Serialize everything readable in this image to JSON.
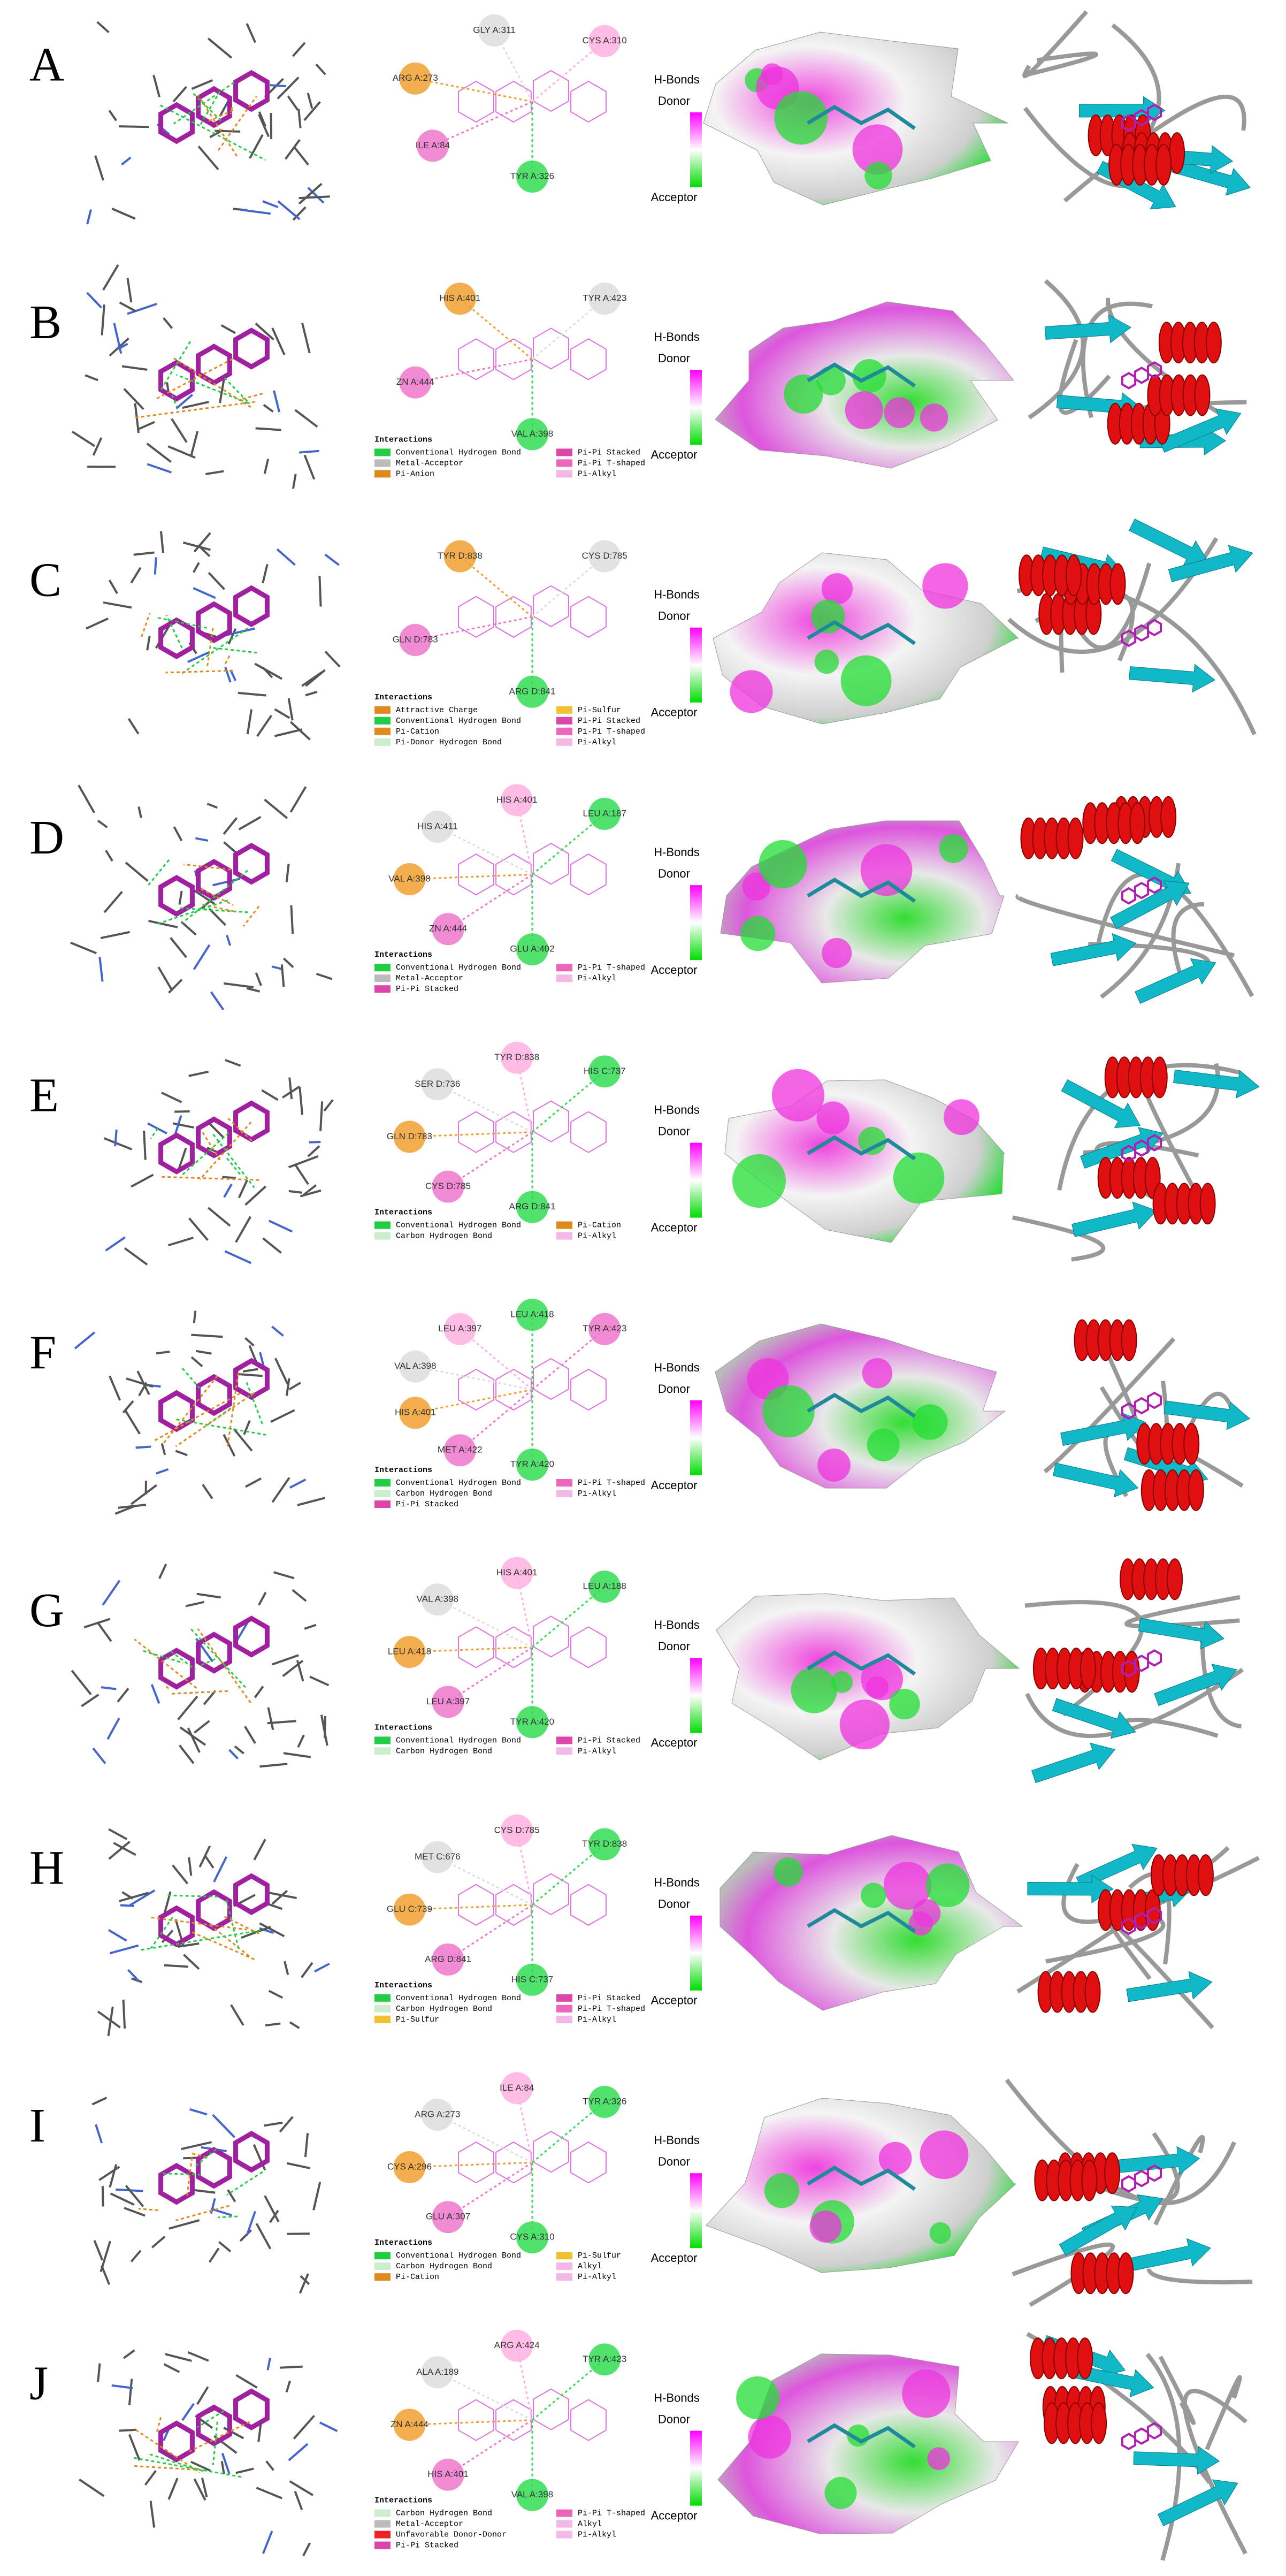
{
  "panels": [
    {
      "label": "A",
      "residues": [
        "TYR A:326",
        "ILE A:84",
        "ARG A:273",
        "GLY A:311",
        "CYS A:310"
      ],
      "legend_title": null,
      "interactions": [],
      "hbonds": {
        "title": "H-Bonds",
        "donor": "Donor",
        "acceptor": "Acceptor"
      }
    },
    {
      "label": "B",
      "residues": [
        "VAL A:398",
        "ZN A:444",
        "HIS A:401",
        "TYR A:423"
      ],
      "legend_title": "Interactions",
      "interactions": [
        {
          "name": "Conventional Hydrogen Bond",
          "color": "#22cc44"
        },
        {
          "name": "Metal-Acceptor",
          "color": "#bbbbbb"
        },
        {
          "name": "Pi-Anion",
          "color": "#e08a1e"
        },
        {
          "name": "Pi-Pi Stacked",
          "color": "#dd44aa"
        },
        {
          "name": "Pi-Pi T-shaped",
          "color": "#ee66bb"
        },
        {
          "name": "Pi-Alkyl",
          "color": "#f4b8e4"
        }
      ],
      "hbonds": {
        "title": "H-Bonds",
        "donor": "Donor",
        "acceptor": "Acceptor"
      }
    },
    {
      "label": "C",
      "residues": [
        "ARG D:841",
        "GLN D:783",
        "TYR D:838",
        "CYS D:785"
      ],
      "legend_title": "Interactions",
      "interactions": [
        {
          "name": "Attractive Charge",
          "color": "#e08a1e"
        },
        {
          "name": "Conventional Hydrogen Bond",
          "color": "#22cc44"
        },
        {
          "name": "Pi-Cation",
          "color": "#e08a1e"
        },
        {
          "name": "Pi-Donor Hydrogen Bond",
          "color": "#cceecc"
        },
        {
          "name": "Pi-Sulfur",
          "color": "#f0c030"
        },
        {
          "name": "Pi-Pi Stacked",
          "color": "#dd44aa"
        },
        {
          "name": "Pi-Pi T-shaped",
          "color": "#ee66bb"
        },
        {
          "name": "Pi-Alkyl",
          "color": "#f4b8e4"
        }
      ],
      "hbonds": {
        "title": "H-Bonds",
        "donor": "Donor",
        "acceptor": "Acceptor"
      }
    },
    {
      "label": "D",
      "residues": [
        "GLU A:402",
        "ZN A:444",
        "VAL A:398",
        "HIS A:411",
        "HIS A:401",
        "LEU A:187"
      ],
      "legend_title": "Interactions",
      "interactions": [
        {
          "name": "Conventional Hydrogen Bond",
          "color": "#22cc44"
        },
        {
          "name": "Metal-Acceptor",
          "color": "#bbbbbb"
        },
        {
          "name": "Pi-Pi Stacked",
          "color": "#dd44aa"
        },
        {
          "name": "Pi-Pi T-shaped",
          "color": "#ee66bb"
        },
        {
          "name": "Pi-Alkyl",
          "color": "#f4b8e4"
        }
      ],
      "hbonds": {
        "title": "H-Bonds",
        "donor": "Donor",
        "acceptor": "Acceptor"
      }
    },
    {
      "label": "E",
      "residues": [
        "ARG D:841",
        "CYS D:785",
        "GLN D:783",
        "SER D:736",
        "TYR D:838",
        "HIS C:737"
      ],
      "legend_title": "Interactions",
      "interactions": [
        {
          "name": "Conventional Hydrogen Bond",
          "color": "#22cc44"
        },
        {
          "name": "Carbon Hydrogen Bond",
          "color": "#cceecc"
        },
        {
          "name": "Pi-Cation",
          "color": "#e08a1e"
        },
        {
          "name": "Pi-Alkyl",
          "color": "#f4b8e4"
        }
      ],
      "hbonds": {
        "title": "H-Bonds",
        "donor": "Donor",
        "acceptor": "Acceptor"
      }
    },
    {
      "label": "F",
      "residues": [
        "TYR A:420",
        "MET A:422",
        "HIS A:401",
        "VAL A:398",
        "LEU A:397",
        "LEU A:418",
        "TYR A:423"
      ],
      "legend_title": "Interactions",
      "interactions": [
        {
          "name": "Conventional Hydrogen Bond",
          "color": "#22cc44"
        },
        {
          "name": "Carbon Hydrogen Bond",
          "color": "#cceecc"
        },
        {
          "name": "Pi-Pi Stacked",
          "color": "#dd44aa"
        },
        {
          "name": "Pi-Pi T-shaped",
          "color": "#ee66bb"
        },
        {
          "name": "Pi-Alkyl",
          "color": "#f4b8e4"
        }
      ],
      "hbonds": {
        "title": "H-Bonds",
        "donor": "Donor",
        "acceptor": "Acceptor"
      }
    },
    {
      "label": "G",
      "residues": [
        "TYR A:420",
        "LEU A:397",
        "LEU A:418",
        "VAL A:398",
        "HIS A:401",
        "LEU A:188"
      ],
      "legend_title": "Interactions",
      "interactions": [
        {
          "name": "Conventional Hydrogen Bond",
          "color": "#22cc44"
        },
        {
          "name": "Carbon Hydrogen Bond",
          "color": "#cceecc"
        },
        {
          "name": "Pi-Pi Stacked",
          "color": "#dd44aa"
        },
        {
          "name": "Pi-Alkyl",
          "color": "#f4b8e4"
        }
      ],
      "hbonds": {
        "title": "H-Bonds",
        "donor": "Donor",
        "acceptor": "Acceptor"
      }
    },
    {
      "label": "H",
      "residues": [
        "HIS C:737",
        "ARG D:841",
        "GLU C:739",
        "MET C:676",
        "CYS D:785",
        "TYR D:838"
      ],
      "legend_title": "Interactions",
      "interactions": [
        {
          "name": "Conventional Hydrogen Bond",
          "color": "#22cc44"
        },
        {
          "name": "Carbon Hydrogen Bond",
          "color": "#cceecc"
        },
        {
          "name": "Pi-Sulfur",
          "color": "#f0c030"
        },
        {
          "name": "Pi-Pi Stacked",
          "color": "#dd44aa"
        },
        {
          "name": "Pi-Pi T-shaped",
          "color": "#ee66bb"
        },
        {
          "name": "Pi-Alkyl",
          "color": "#f4b8e4"
        }
      ],
      "hbonds": {
        "title": "H-Bonds",
        "donor": "Donor",
        "acceptor": "Acceptor"
      }
    },
    {
      "label": "I",
      "residues": [
        "CYS A:310",
        "GLU A:307",
        "CYS A:296",
        "ARG A:273",
        "ILE A:84",
        "TYR A:326"
      ],
      "legend_title": "Interactions",
      "interactions": [
        {
          "name": "Conventional Hydrogen Bond",
          "color": "#22cc44"
        },
        {
          "name": "Carbon Hydrogen Bond",
          "color": "#cceecc"
        },
        {
          "name": "Pi-Cation",
          "color": "#e08a1e"
        },
        {
          "name": "Pi-Sulfur",
          "color": "#f0c030"
        },
        {
          "name": "Alkyl",
          "color": "#f4b8e4"
        },
        {
          "name": "Pi-Alkyl",
          "color": "#f4b8e4"
        }
      ],
      "hbonds": {
        "title": "H-Bonds",
        "donor": "Donor",
        "acceptor": "Acceptor"
      }
    },
    {
      "label": "J",
      "residues": [
        "VAL A:398",
        "HIS A:401",
        "ZN A:444",
        "ALA A:189",
        "ARG A:424",
        "TYR A:423"
      ],
      "legend_title": "Interactions",
      "interactions": [
        {
          "name": "Carbon Hydrogen Bond",
          "color": "#cceecc"
        },
        {
          "name": "Metal-Acceptor",
          "color": "#bbbbbb"
        },
        {
          "name": "Unfavorable Donor-Donor",
          "color": "#ee2222"
        },
        {
          "name": "Pi-Pi Stacked",
          "color": "#dd44aa"
        },
        {
          "name": "Pi-Pi T-shaped",
          "color": "#ee66bb"
        },
        {
          "name": "Alkyl",
          "color": "#f4b8e4"
        },
        {
          "name": "Pi-Alkyl",
          "color": "#f4b8e4"
        }
      ],
      "hbonds": {
        "title": "H-Bonds",
        "donor": "Donor",
        "acceptor": "Acceptor"
      }
    }
  ]
}
